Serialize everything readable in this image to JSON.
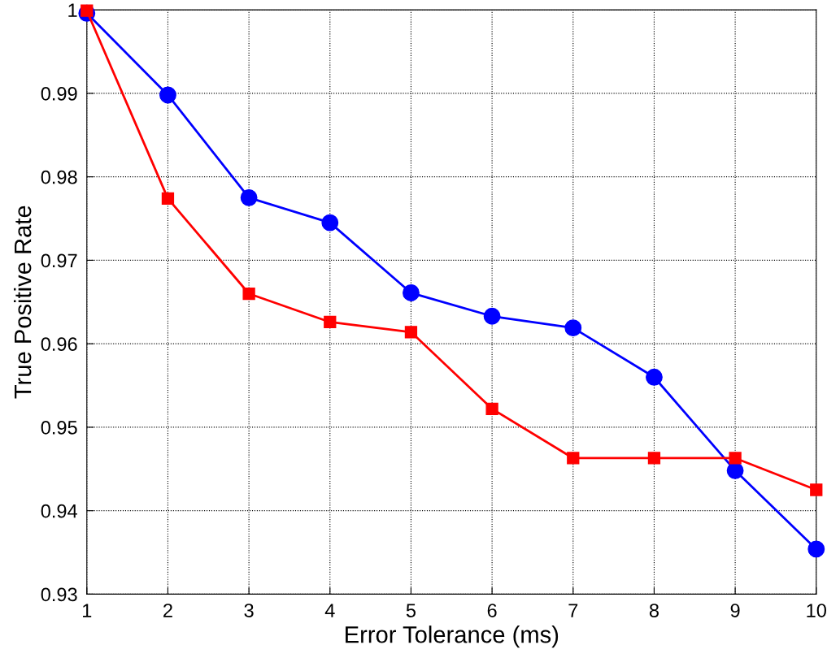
{
  "chart_data": {
    "type": "line",
    "xlabel": "Error Tolerance (ms)",
    "ylabel": "True Positive Rate",
    "x": [
      1,
      2,
      3,
      4,
      5,
      6,
      7,
      8,
      9,
      10
    ],
    "series": [
      {
        "color": "#0000ff",
        "marker": "circle",
        "values": [
          0.9996,
          0.9898,
          0.9775,
          0.9745,
          0.9661,
          0.9633,
          0.9619,
          0.956,
          0.9448,
          0.9354
        ]
      },
      {
        "color": "#ff0000",
        "marker": "square",
        "values": [
          0.9999,
          0.9774,
          0.966,
          0.9626,
          0.9614,
          0.9522,
          0.9463,
          0.9463,
          0.9463,
          0.9425
        ]
      }
    ],
    "xlim": [
      1,
      10
    ],
    "xticks": [
      1,
      2,
      3,
      4,
      5,
      6,
      7,
      8,
      9,
      10
    ],
    "ylim": [
      0.93,
      1.0
    ],
    "yticks": [
      0.93,
      0.94,
      0.95,
      0.96,
      0.97,
      0.98,
      0.99,
      {
        "value": 1.0,
        "label": "1"
      }
    ],
    "grid": true,
    "line_style": "solid"
  }
}
